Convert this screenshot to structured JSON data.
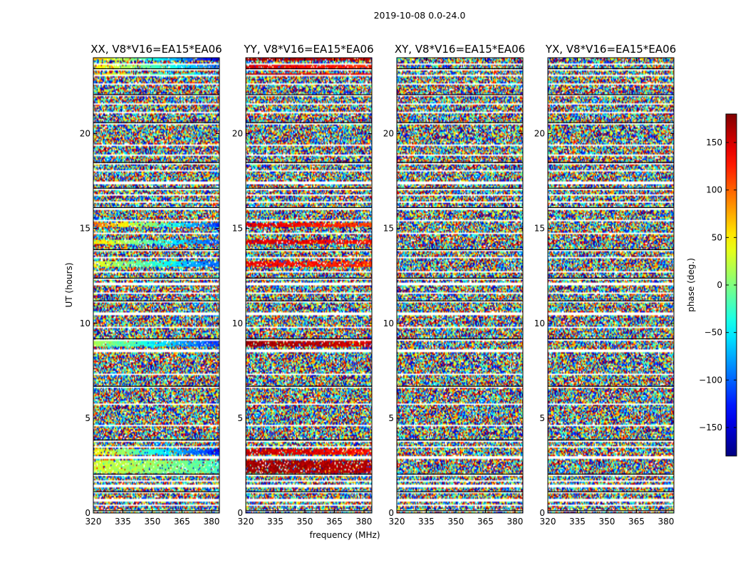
{
  "chart_data": {
    "type": "heatmap",
    "suptitle": "2019-10-08 0.0-24.0",
    "xlabel": "frequency (MHz)",
    "ylabel": "UT (hours)",
    "colorbar_label": "phase (deg.)",
    "colormap": "jet",
    "xlim": [
      320,
      384
    ],
    "ylim": [
      0,
      24
    ],
    "clim": [
      -180,
      180
    ],
    "x_ticks": [
      "320",
      "335",
      "350",
      "365",
      "380"
    ],
    "x_tick_values": [
      320,
      335,
      350,
      365,
      380
    ],
    "y_ticks": [
      "0",
      "5",
      "10",
      "15",
      "20"
    ],
    "y_tick_values": [
      0,
      5,
      10,
      15,
      20
    ],
    "colorbar_ticks": [
      "−150",
      "−100",
      "−50",
      "0",
      "50",
      "100",
      "150"
    ],
    "colorbar_tick_values": [
      -150,
      -100,
      -50,
      0,
      50,
      100,
      150
    ],
    "flagged_ut_bands": [
      [
        0.05,
        0.12
      ],
      [
        0.35,
        0.42
      ],
      [
        0.62,
        0.72
      ],
      [
        1.05,
        1.12
      ],
      [
        1.38,
        1.48
      ],
      [
        1.65,
        1.72
      ],
      [
        1.95,
        2.05
      ],
      [
        2.85,
        3.0
      ],
      [
        3.45,
        3.55
      ],
      [
        3.75,
        3.85
      ],
      [
        4.6,
        4.68
      ],
      [
        5.7,
        5.78
      ],
      [
        6.6,
        6.68
      ],
      [
        7.3,
        7.38
      ],
      [
        8.5,
        8.62
      ],
      [
        9.1,
        9.18
      ],
      [
        9.75,
        9.82
      ],
      [
        10.45,
        10.55
      ],
      [
        11.1,
        11.18
      ],
      [
        11.55,
        11.62
      ],
      [
        12.0,
        12.12
      ],
      [
        12.3,
        12.38
      ],
      [
        12.65,
        12.72
      ],
      [
        13.4,
        13.48
      ],
      [
        13.8,
        13.88
      ],
      [
        14.7,
        14.78
      ],
      [
        15.35,
        15.42
      ],
      [
        16.0,
        16.1
      ],
      [
        16.35,
        16.42
      ],
      [
        16.7,
        16.78
      ],
      [
        17.05,
        17.12
      ],
      [
        17.35,
        17.45
      ],
      [
        18.0,
        18.08
      ],
      [
        18.4,
        18.48
      ],
      [
        18.8,
        18.9
      ],
      [
        19.35,
        19.42
      ],
      [
        20.5,
        20.58
      ],
      [
        21.1,
        21.18
      ],
      [
        21.5,
        21.58
      ],
      [
        21.95,
        22.05
      ],
      [
        22.6,
        22.68
      ],
      [
        23.0,
        23.08
      ],
      [
        23.35,
        23.42
      ],
      [
        23.65,
        23.72
      ]
    ],
    "panels": [
      {
        "title": "XX, V8*V16=EA15*EA06",
        "coherent_ut_bands": [
          [
            3.1,
            3.4,
            50,
            -130
          ],
          [
            2.1,
            2.8,
            30,
            -20
          ],
          [
            8.8,
            9.1,
            20,
            -120
          ],
          [
            10.4,
            10.6,
            0,
            -140
          ],
          [
            13.0,
            13.3,
            40,
            -100
          ],
          [
            14.2,
            14.4,
            60,
            -110
          ],
          [
            15.1,
            15.3,
            100,
            -120
          ],
          [
            23.0,
            23.2,
            60,
            -80
          ],
          [
            23.4,
            23.6,
            60,
            -100
          ],
          [
            23.85,
            23.98,
            70,
            -150
          ]
        ]
      },
      {
        "title": "YY, V8*V16=EA15*EA06",
        "coherent_ut_bands": [
          [
            3.1,
            3.4,
            160,
            130
          ],
          [
            2.1,
            2.8,
            170,
            160
          ],
          [
            8.8,
            9.1,
            170,
            150
          ],
          [
            10.4,
            10.6,
            175,
            170
          ],
          [
            13.0,
            13.3,
            140,
            120
          ],
          [
            14.2,
            14.4,
            150,
            130
          ],
          [
            15.1,
            15.3,
            150,
            110
          ],
          [
            23.0,
            23.2,
            160,
            140
          ],
          [
            23.4,
            23.6,
            150,
            120
          ],
          [
            23.85,
            23.98,
            170,
            160
          ]
        ]
      },
      {
        "title": "XY, V8*V16=EA15*EA06",
        "coherent_ut_bands": []
      },
      {
        "title": "YX, V8*V16=EA15*EA06",
        "coherent_ut_bands": []
      }
    ]
  }
}
